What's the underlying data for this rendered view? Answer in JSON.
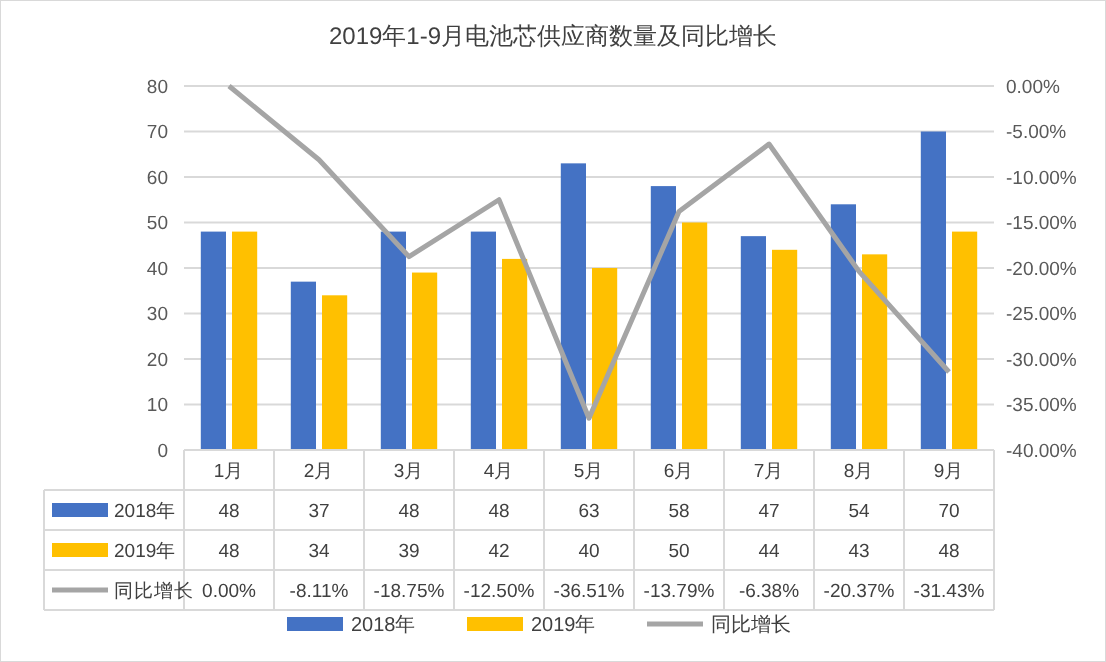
{
  "chart_data": {
    "type": "bar",
    "title": "2019年1-9月电池芯供应商数量及同比增长",
    "categories": [
      "1月",
      "2月",
      "3月",
      "4月",
      "5月",
      "6月",
      "7月",
      "8月",
      "9月"
    ],
    "series": [
      {
        "name": "2018年",
        "color": "#4472c4",
        "values": [
          48,
          37,
          48,
          48,
          63,
          58,
          47,
          54,
          70
        ],
        "value_labels": [
          "48",
          "37",
          "48",
          "48",
          "63",
          "58",
          "47",
          "54",
          "70"
        ]
      },
      {
        "name": "2019年",
        "color": "#ffc000",
        "values": [
          48,
          34,
          39,
          42,
          40,
          50,
          44,
          43,
          48
        ],
        "value_labels": [
          "48",
          "34",
          "39",
          "42",
          "40",
          "50",
          "44",
          "43",
          "48"
        ]
      },
      {
        "name": "同比增长",
        "type": "line",
        "axis": "y2",
        "color": "#a5a5a5",
        "values": [
          0,
          -8.11,
          -18.75,
          -12.5,
          -36.51,
          -13.79,
          -6.38,
          -20.37,
          -31.43
        ],
        "value_labels": [
          "0.00%",
          "-8.11%",
          "-18.75%",
          "-12.50%",
          "-36.51%",
          "-13.79%",
          "-6.38%",
          "-20.37%",
          "-31.43%"
        ]
      }
    ],
    "ylim": [
      0,
      80
    ],
    "yticks": [
      0,
      10,
      20,
      30,
      40,
      50,
      60,
      70,
      80
    ],
    "y2lim": [
      -40,
      0
    ],
    "y2ticks": [
      {
        "value": 0,
        "label": "0.00%"
      },
      {
        "value": -5,
        "label": "-5.00%"
      },
      {
        "value": -10,
        "label": "-10.00%"
      },
      {
        "value": -15,
        "label": "-15.00%"
      },
      {
        "value": -20,
        "label": "-20.00%"
      },
      {
        "value": -25,
        "label": "-25.00%"
      },
      {
        "value": -30,
        "label": "-30.00%"
      },
      {
        "value": -35,
        "label": "-35.00%"
      },
      {
        "value": -40,
        "label": "-40.00%"
      }
    ],
    "grid": "y",
    "legend": "bottom",
    "marker": "none",
    "line_style": "solid"
  }
}
